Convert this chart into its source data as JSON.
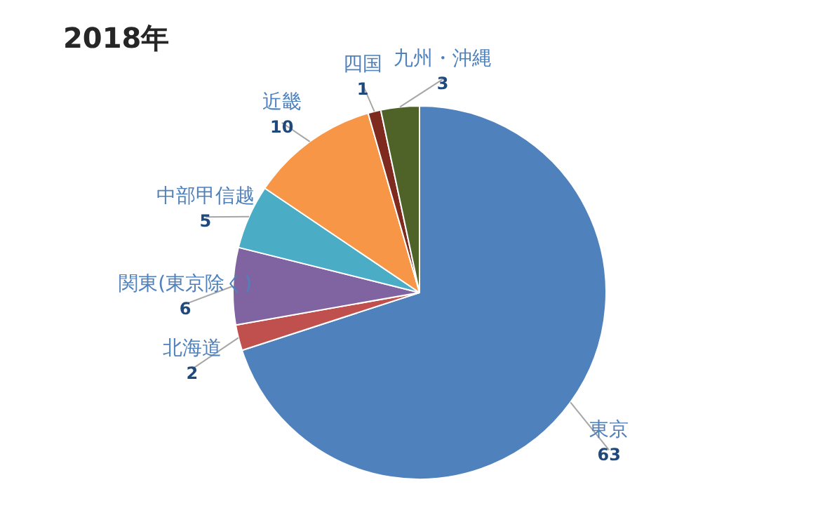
{
  "chart_data": {
    "type": "pie",
    "title": "2018年",
    "categories": [
      "東京",
      "北海道",
      "関東(東京除く)",
      "中部甲信越",
      "近畿",
      "四国",
      "九州・沖縄"
    ],
    "values": [
      63,
      2,
      6,
      5,
      10,
      1,
      3
    ],
    "colors": [
      "#4f81bd",
      "#c0504d",
      "#8064a2",
      "#4bacc6",
      "#f79646",
      "#7f2a1e",
      "#4f6228"
    ],
    "data_labels": true,
    "legend": false
  }
}
